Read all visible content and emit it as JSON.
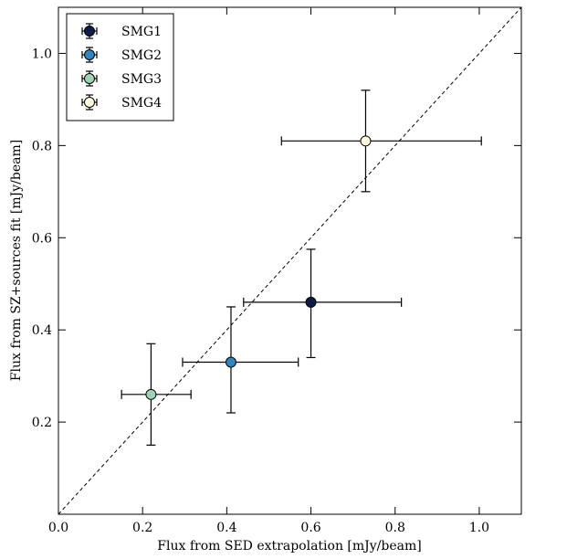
{
  "chart_data": {
    "type": "scatter",
    "xlabel": "Flux from SED extrapolation [mJy/beam]",
    "ylabel": "Flux from SZ+sources fit [mJy/beam]",
    "xlim": [
      0.0,
      1.1
    ],
    "ylim": [
      0.0,
      1.1
    ],
    "x_ticks": [
      "0.0",
      "0.2",
      "0.4",
      "0.6",
      "0.8",
      "1.0"
    ],
    "y_ticks": [
      "0.2",
      "0.4",
      "0.6",
      "0.8",
      "1.0"
    ],
    "grid": false,
    "legend_position": "top-left",
    "reference_line": {
      "style": "dashed",
      "from": [
        0.0,
        0.0
      ],
      "to": [
        1.1,
        1.1
      ]
    },
    "series": [
      {
        "name": "SMG1",
        "color": "#0d1a4a",
        "x": 0.6,
        "y": 0.46,
        "x_err": [
          0.16,
          0.215
        ],
        "y_err": [
          0.12,
          0.115
        ]
      },
      {
        "name": "SMG2",
        "color": "#2f85c0",
        "x": 0.41,
        "y": 0.33,
        "x_err": [
          0.115,
          0.16
        ],
        "y_err": [
          0.11,
          0.12
        ]
      },
      {
        "name": "SMG3",
        "color": "#9fd3b5",
        "x": 0.22,
        "y": 0.26,
        "x_err": [
          0.07,
          0.095
        ],
        "y_err": [
          0.11,
          0.11
        ]
      },
      {
        "name": "SMG4",
        "color": "#fcfbdb",
        "x": 0.73,
        "y": 0.81,
        "x_err": [
          0.2,
          0.275
        ],
        "y_err": [
          0.11,
          0.11
        ]
      }
    ]
  }
}
